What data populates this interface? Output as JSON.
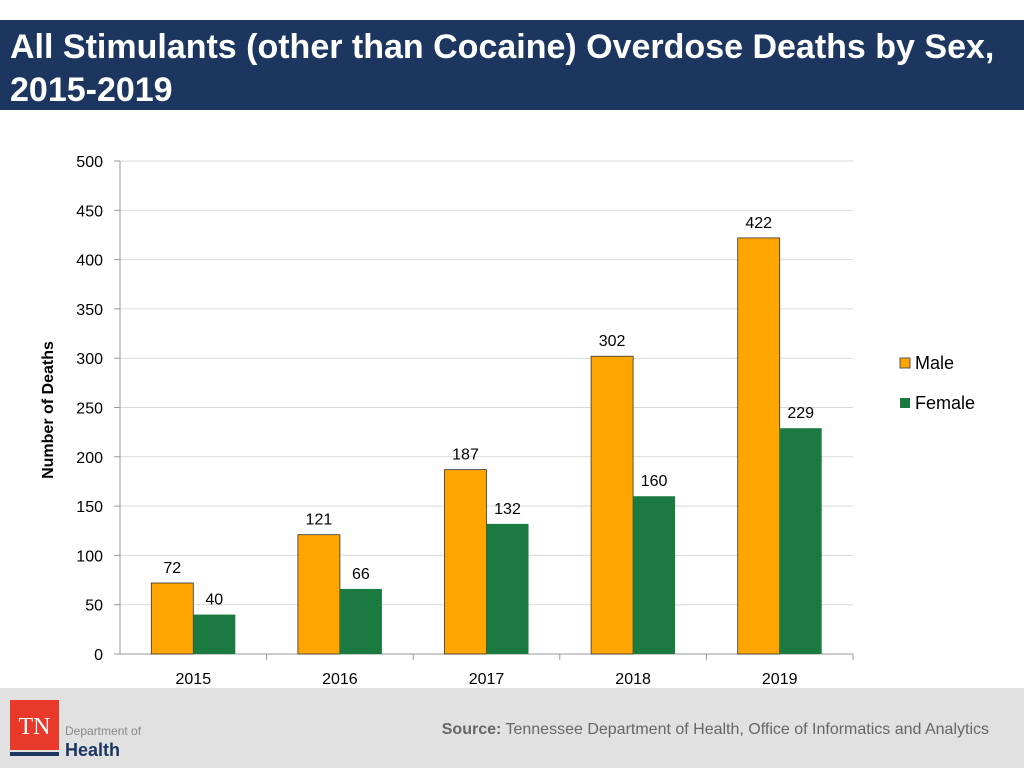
{
  "header": {
    "title": "All Stimulants (other than Cocaine) Overdose Deaths by Sex, 2015-2019"
  },
  "footer": {
    "source_label": "Source:",
    "source_text": "Tennessee Department of Health, Office of Informatics and Analytics",
    "logo": {
      "mark": "TN",
      "line1": "Department of",
      "line2": "Health"
    }
  },
  "chart_data": {
    "type": "bar",
    "title": "",
    "xlabel": "",
    "ylabel": "Number of Deaths",
    "ylim": [
      0,
      500
    ],
    "yticks": [
      0,
      50,
      100,
      150,
      200,
      250,
      300,
      350,
      400,
      450,
      500
    ],
    "grid": true,
    "legend": "right",
    "categories": [
      "2015",
      "2016",
      "2017",
      "2018",
      "2019"
    ],
    "series": [
      {
        "name": "Male",
        "color": "#ffa500",
        "values": [
          72,
          121,
          187,
          302,
          422
        ]
      },
      {
        "name": "Female",
        "color": "#1a7a40",
        "values": [
          40,
          66,
          132,
          160,
          229
        ]
      }
    ]
  }
}
